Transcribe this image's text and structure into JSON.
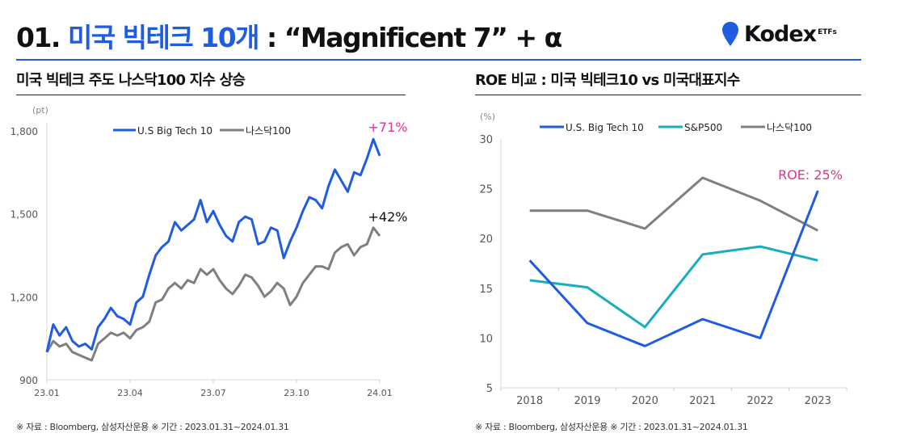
{
  "header": {
    "title_prefix": "01.",
    "title_highlight": "미국 빅테크 10개",
    "title_rest": ": “Magnificent 7” + α",
    "logo_name": "Kodex",
    "logo_sup": "ETFs"
  },
  "colors": {
    "blue": "#1f5ce0",
    "gray": "#7f7f7f",
    "teal": "#17adbd",
    "pink": "#e0338f"
  },
  "footnote_left": "※ 자료 : Bloomberg, 삼성자산운용 ※ 기간 : 2023.01.31~2024.01.31",
  "footnote_right": "※ 자료 : Bloomberg, 삼성자산운용 ※ 기간 : 2023.01.31~2024.01.31",
  "chart_data": [
    {
      "type": "line",
      "title": "미국 빅테크 주도 나스닥100 지수 상승",
      "ylabel": "(pt)",
      "ylim": [
        900,
        1800
      ],
      "yticks": [
        "900",
        "1,200",
        "1,500",
        "1,800"
      ],
      "yticks_values": [
        900,
        1200,
        1500,
        1800
      ],
      "xticks": [
        "23.01",
        "23.04",
        "23.07",
        "23.10",
        "24.01"
      ],
      "legend": "top-center",
      "series": [
        {
          "name": "U.S Big Tech 10",
          "color": "#1f5ce0",
          "end_label": "+71%",
          "values": [
            1000,
            1100,
            1060,
            1090,
            1040,
            1020,
            1030,
            1010,
            1090,
            1120,
            1160,
            1130,
            1120,
            1100,
            1180,
            1200,
            1280,
            1350,
            1380,
            1400,
            1470,
            1440,
            1460,
            1480,
            1550,
            1470,
            1510,
            1460,
            1420,
            1400,
            1470,
            1490,
            1480,
            1390,
            1400,
            1450,
            1440,
            1340,
            1400,
            1450,
            1510,
            1560,
            1550,
            1520,
            1600,
            1660,
            1620,
            1580,
            1650,
            1640,
            1700,
            1770,
            1710
          ]
        },
        {
          "name": "나스닥100",
          "color": "#7f7f7f",
          "end_label": "+42%",
          "values": [
            1000,
            1040,
            1020,
            1030,
            1000,
            990,
            980,
            970,
            1030,
            1050,
            1070,
            1060,
            1070,
            1050,
            1080,
            1090,
            1110,
            1180,
            1190,
            1230,
            1250,
            1230,
            1260,
            1250,
            1300,
            1280,
            1300,
            1260,
            1230,
            1210,
            1240,
            1280,
            1270,
            1240,
            1200,
            1220,
            1250,
            1230,
            1170,
            1200,
            1250,
            1280,
            1310,
            1310,
            1300,
            1360,
            1380,
            1390,
            1350,
            1380,
            1390,
            1450,
            1420
          ]
        }
      ]
    },
    {
      "type": "line",
      "title": "ROE 비교 : 미국 빅테크10 vs 미국대표지수",
      "ylabel": "(%)",
      "ylim": [
        5,
        30
      ],
      "yticks": [
        "5",
        "10",
        "15",
        "20",
        "25",
        "30"
      ],
      "yticks_values": [
        5,
        10,
        15,
        20,
        25,
        30
      ],
      "categories": [
        "2018",
        "2019",
        "2020",
        "2021",
        "2022",
        "2023"
      ],
      "legend": "top-center",
      "annotation": "ROE: 25%",
      "series": [
        {
          "name": "U.S. Big Tech 10",
          "color": "#1f5ce0",
          "values": [
            17.8,
            11.5,
            9.2,
            11.9,
            10.0,
            24.8
          ]
        },
        {
          "name": "S&P500",
          "color": "#17adbd",
          "values": [
            15.8,
            15.1,
            11.1,
            18.4,
            19.2,
            17.8
          ]
        },
        {
          "name": "나스닥100",
          "color": "#7f7f7f",
          "values": [
            22.8,
            22.8,
            21.0,
            26.1,
            23.8,
            20.8
          ]
        }
      ]
    }
  ]
}
